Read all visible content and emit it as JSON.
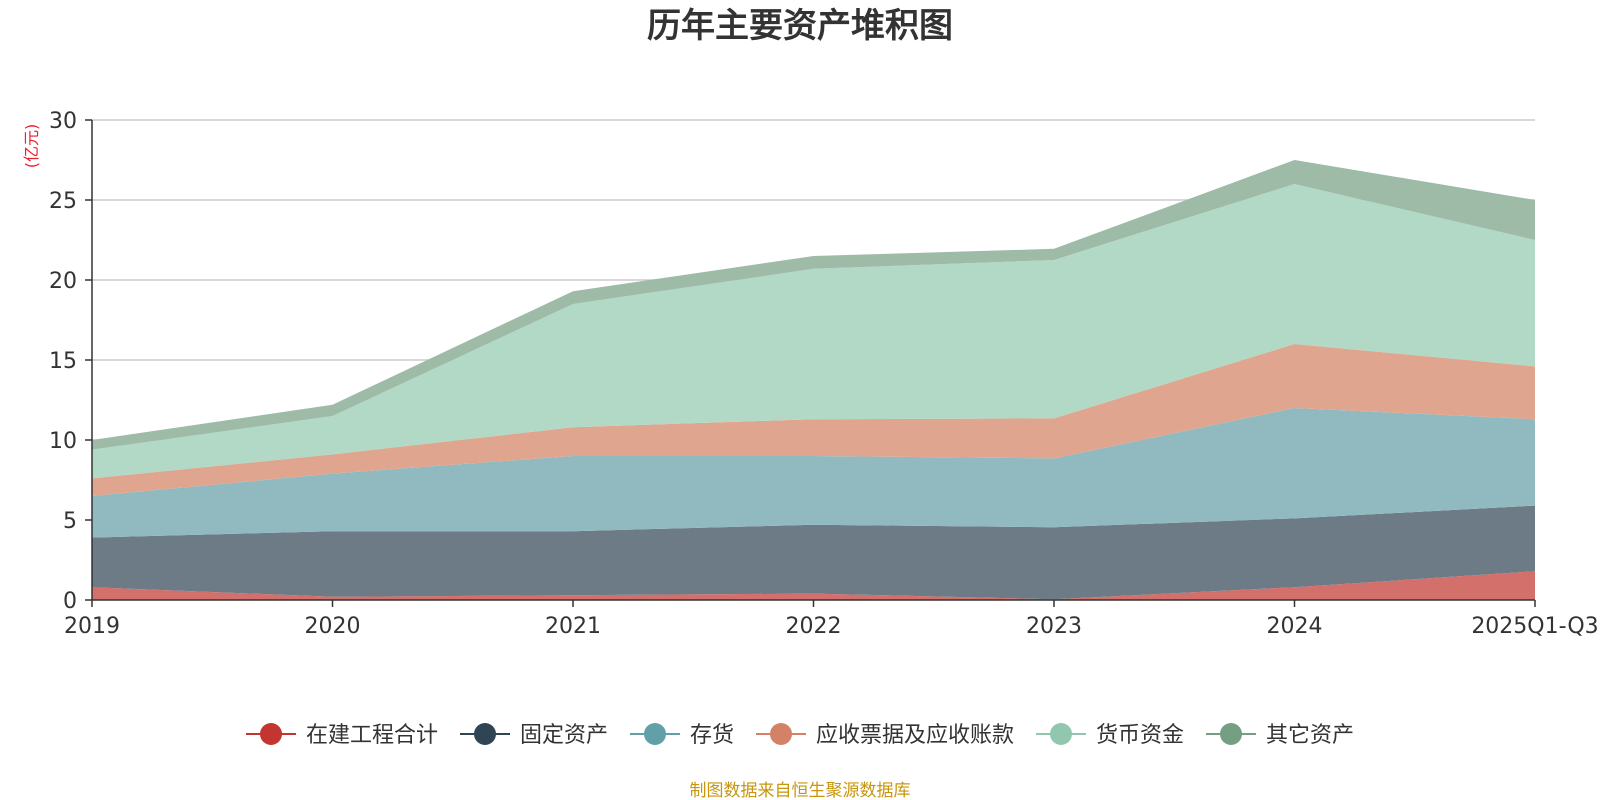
{
  "colors": {
    "axis": "#333333",
    "grid": "#cccccc",
    "unit": "#e8202a",
    "source": "#c8960c"
  },
  "chart_data": {
    "type": "area",
    "stacked": true,
    "title": "历年主要资产堆积图",
    "ylabel": "(亿元)",
    "xlabel": "",
    "ylim": [
      0,
      30
    ],
    "yticks": [
      0,
      5,
      10,
      15,
      20,
      25,
      30
    ],
    "grid": true,
    "categories": [
      "2019",
      "2020",
      "2021",
      "2022",
      "2023",
      "2024",
      "2025Q1-Q3"
    ],
    "legend_position": "bottom",
    "series": [
      {
        "name": "在建工程合计",
        "color": "#c23531",
        "fill": "#d4706c",
        "values": [
          0.8,
          0.2,
          0.3,
          0.4,
          0.05,
          0.8,
          1.8
        ]
      },
      {
        "name": "固定资产",
        "color": "#2f4554",
        "fill": "#6d7b86",
        "values": [
          3.1,
          4.1,
          4.0,
          4.3,
          4.5,
          4.3,
          4.1
        ]
      },
      {
        "name": "存货",
        "color": "#61a0a8",
        "fill": "#90bac0",
        "values": [
          2.6,
          3.6,
          4.7,
          4.3,
          4.3,
          6.9,
          5.4
        ]
      },
      {
        "name": "应收票据及应收账款",
        "color": "#d48265",
        "fill": "#e0a58f",
        "values": [
          1.1,
          1.2,
          1.8,
          2.3,
          2.5,
          4.0,
          3.3
        ]
      },
      {
        "name": "货币资金",
        "color": "#91c7ae",
        "fill": "#b2d8c6",
        "values": [
          1.8,
          2.4,
          7.7,
          9.4,
          9.9,
          10.0,
          7.9
        ]
      },
      {
        "name": "其它资产",
        "color": "#749f83",
        "fill": "#9dbba7",
        "values": [
          0.6,
          0.7,
          0.8,
          0.8,
          0.7,
          1.5,
          2.5
        ]
      }
    ]
  },
  "source_note": "制图数据来自恒生聚源数据库"
}
